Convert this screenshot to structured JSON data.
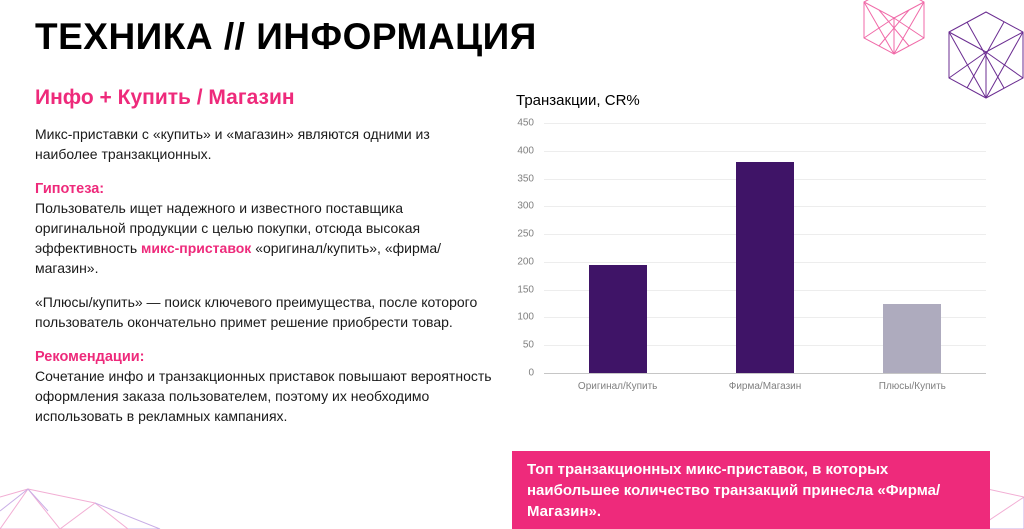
{
  "slide": {
    "title": "ТЕХНИКА // ИНФОРМАЦИЯ",
    "subtitle": "Инфо + Купить / Магазин",
    "intro": "Микс-приставки с «купить» и «магазин» являются одними из наиболее транзакционных.",
    "hypothesis_label": "Гипотеза:",
    "hypothesis_before": "Пользователь ищет надежного и известного поставщика оригинальной продукции с целью покупки, отсюда высокая эффективность ",
    "hypothesis_highlight": "микс-приставок",
    "hypothesis_after": " «оригинал/купить», «фирма/магазин».",
    "hypothesis_p2": "«Плюсы/купить» — поиск ключевого преимущества, после которого пользователь окончательно примет решение приобрести товар.",
    "recommendations_label": "Рекомендации:",
    "recommendations_text": "Сочетание инфо и транзакционных приставок повышают вероятность оформления заказа пользователем, поэтому их необходимо использовать в рекламных кампаниях.",
    "callout": "Топ транзакционных микс-приставок, в которых наибольшее количество транзакций принесла «Фирма/Магазин»."
  },
  "chart_data": {
    "type": "bar",
    "title": "Транзакции, CR%",
    "categories": [
      "Оригинал/Купить",
      "Фирма/Магазин",
      "Плюсы/Купить"
    ],
    "values": [
      195,
      380,
      125
    ],
    "bar_colors": [
      "#3f1467",
      "#3f1467",
      "#aeabbe"
    ],
    "xlabel": "",
    "ylabel": "",
    "ylim": [
      0,
      450
    ],
    "ytick_step": 50,
    "grid": true,
    "legend": "none"
  },
  "colors": {
    "accent_pink": "#ee2a7b",
    "bar_purple": "#3f1467",
    "bar_gray": "#aeabbe",
    "text": "#1a1a1a"
  }
}
